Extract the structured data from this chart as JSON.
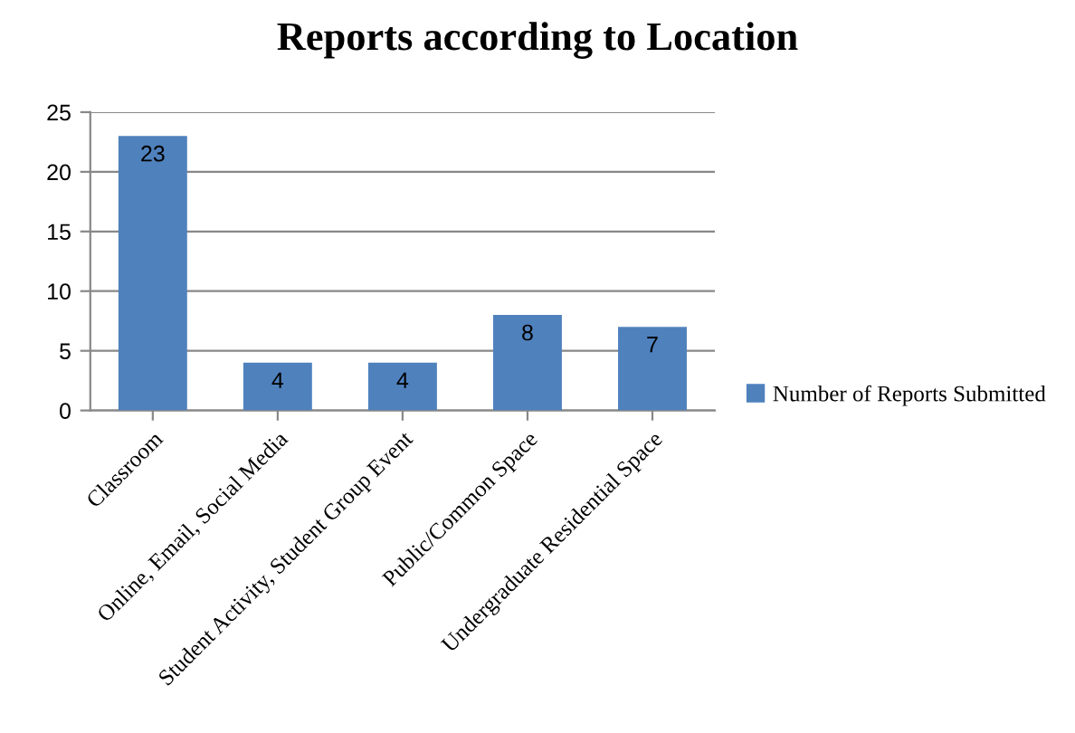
{
  "chart_data": {
    "type": "bar",
    "title": "Reports according to Location",
    "categories": [
      "Classroom",
      "Online, Email, Social Media",
      "Student Activity, Student Group Event",
      "Public/Common Space",
      "Undergraduate Residential Space"
    ],
    "series": [
      {
        "name": "Number of Reports Submitted",
        "color": "#4f81bd",
        "values": [
          23,
          4,
          4,
          8,
          7
        ]
      }
    ],
    "ylim": [
      0,
      25
    ],
    "yticks": [
      0,
      5,
      10,
      15,
      20,
      25
    ],
    "grid": "y",
    "legend": "right",
    "data_labels": true
  }
}
